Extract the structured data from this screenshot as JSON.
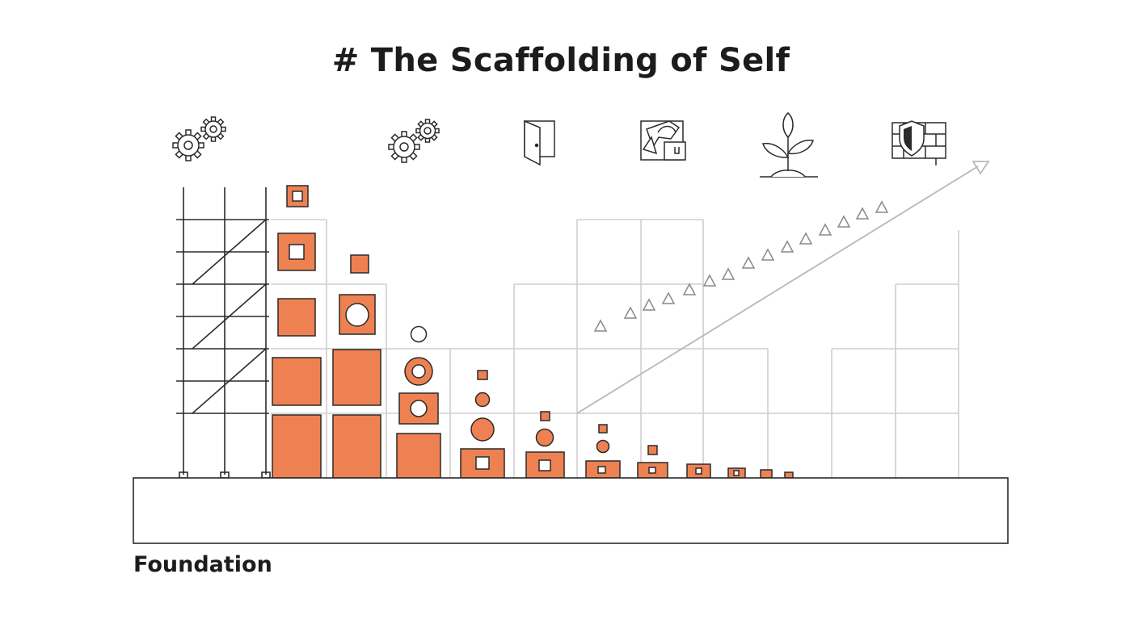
{
  "title": "# The Scaffolding of Self",
  "foundation_label": "Foundation",
  "icons": [
    "gears-icon",
    "gears-icon",
    "door-icon",
    "moving-box-icon",
    "sprout-icon",
    "shield-wall-icon"
  ],
  "colors": {
    "block": "#ee8152",
    "outline": "#2a2a2a",
    "grid": "#cfcfcf",
    "arrow": "#b8b8b8",
    "text": "#1c1c1c"
  }
}
